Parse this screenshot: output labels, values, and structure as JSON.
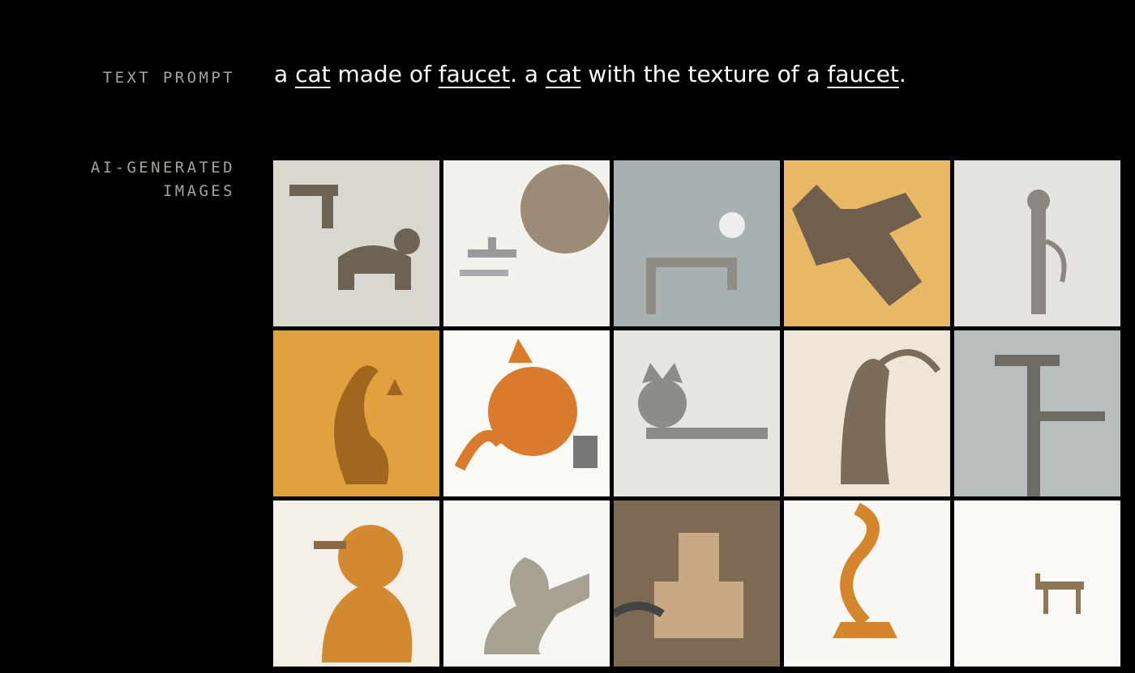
{
  "labels": {
    "text_prompt": "TEXT PROMPT",
    "generated_line1": "AI-GENERATED",
    "generated_line2": "IMAGES"
  },
  "prompt": {
    "p1": "a ",
    "k1": "cat",
    "p2": " made of ",
    "k2": "faucet",
    "p3": ". a ",
    "k3": "cat",
    "p4": " with the texture of a ",
    "k4": "faucet",
    "p5": "."
  },
  "images": [
    {
      "bg": "#d9d7d0",
      "accent": "#6e6253",
      "subject": "brass faucet merged with dark cat figure"
    },
    {
      "bg": "#f3f1ec",
      "accent": "#8c7a63",
      "subject": "tabby cat beside small chrome faucet"
    },
    {
      "bg": "#a9b0b2",
      "accent": "#8f8b85",
      "subject": "wall faucet with cat head handle"
    },
    {
      "bg": "#e7b865",
      "accent": "#6f5f4c",
      "subject": "cat head on metal spout"
    },
    {
      "bg": "#e4e3df",
      "accent": "#8b8680",
      "subject": "chrome cat-shaped faucet"
    },
    {
      "bg": "#e2a13f",
      "accent": "#a1671e",
      "subject": "orange cat silhouette with tail faucet"
    },
    {
      "bg": "#faf9f6",
      "accent": "#d97a2d",
      "subject": "orange cartoon cat with tap"
    },
    {
      "bg": "#e7e6e3",
      "accent": "#8e8c88",
      "subject": "cat head on chrome faucet"
    },
    {
      "bg": "#efe6d8",
      "accent": "#7c6c5c",
      "subject": "silver faucet cat"
    },
    {
      "bg": "#b8bdbd",
      "accent": "#6e6a64",
      "subject": "tall faucet with cat handle"
    },
    {
      "bg": "#f4efe7",
      "accent": "#d2892f",
      "subject": "tabby cat with faucet"
    },
    {
      "bg": "#f7f6f2",
      "accent": "#a7a191",
      "subject": "ceramic cat faucet"
    },
    {
      "bg": "#7d6a53",
      "accent": "#c9a984",
      "subject": "wooden faucet block"
    },
    {
      "bg": "#f9f8f5",
      "accent": "#d5862d",
      "subject": "orange cat tail faucet"
    },
    {
      "bg": "#faf9f6",
      "accent": "#8f7655",
      "subject": "tiny faucet cat"
    }
  ]
}
